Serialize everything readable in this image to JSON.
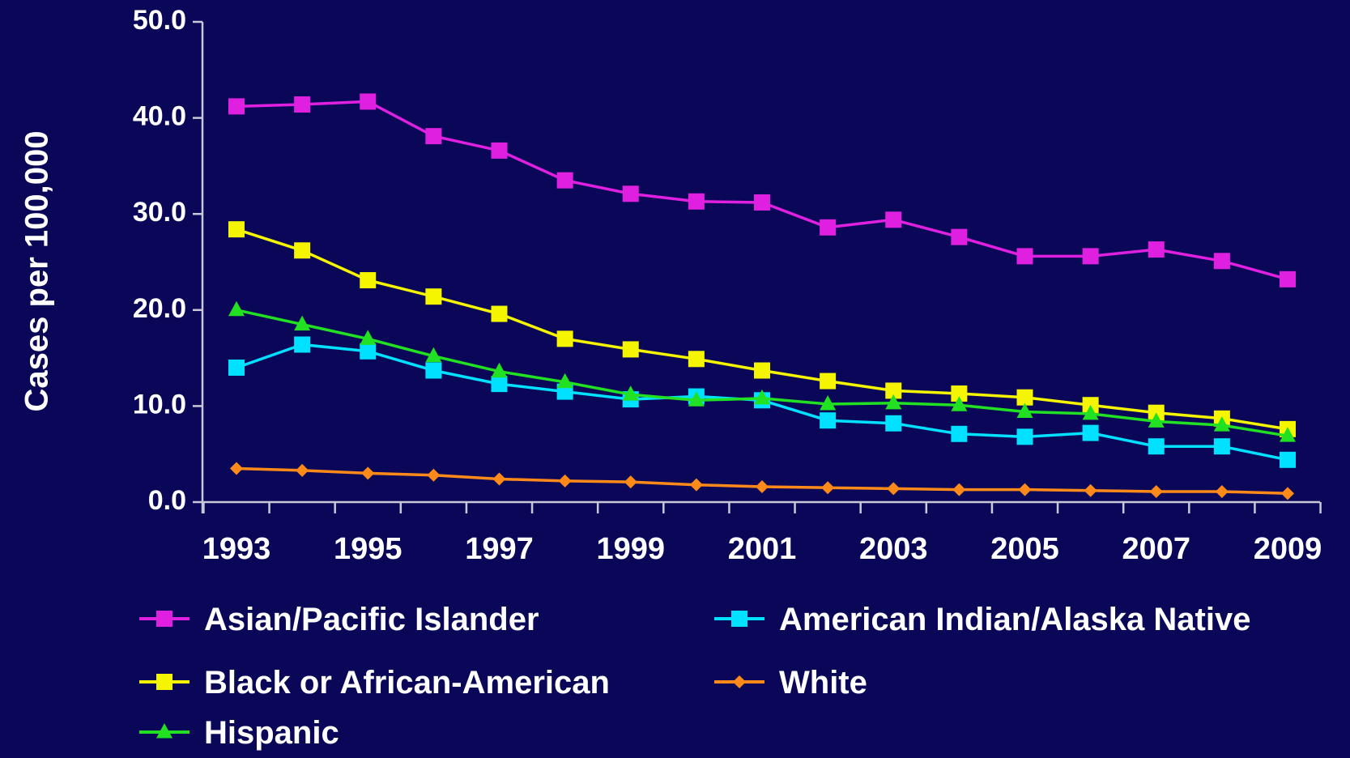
{
  "chart_data": {
    "type": "line",
    "title": "",
    "xlabel": "",
    "ylabel": "Cases per 100,000",
    "x": [
      1993,
      1994,
      1995,
      1996,
      1997,
      1998,
      1999,
      2000,
      2001,
      2002,
      2003,
      2004,
      2005,
      2006,
      2007,
      2008,
      2009
    ],
    "x_tick_labels": [
      "1993",
      "1995",
      "1997",
      "1999",
      "2001",
      "2003",
      "2005",
      "2007",
      "2009"
    ],
    "y_tick_labels": [
      "0.0",
      "10.0",
      "20.0",
      "30.0",
      "40.0",
      "50.0"
    ],
    "ylim": [
      0,
      50
    ],
    "grid": false,
    "legend_position": "bottom",
    "series": [
      {
        "name": "Asian/Pacific Islander",
        "color": "#e020e0",
        "marker": "square",
        "values": [
          41.2,
          41.4,
          41.7,
          38.1,
          36.6,
          33.5,
          32.1,
          31.3,
          31.2,
          28.6,
          29.4,
          27.6,
          25.6,
          25.6,
          26.3,
          25.1,
          23.2
        ]
      },
      {
        "name": "American Indian/Alaska Native",
        "color": "#00e0ff",
        "marker": "square",
        "values": [
          14.0,
          16.4,
          15.7,
          13.7,
          12.3,
          11.5,
          10.7,
          11.0,
          10.6,
          8.5,
          8.2,
          7.1,
          6.8,
          7.2,
          5.8,
          5.8,
          4.4
        ]
      },
      {
        "name": "Black or African-American",
        "color": "#f5f500",
        "marker": "square",
        "values": [
          28.4,
          26.2,
          23.1,
          21.4,
          19.6,
          17.0,
          15.9,
          14.9,
          13.7,
          12.6,
          11.6,
          11.3,
          10.9,
          10.1,
          9.3,
          8.7,
          7.6
        ]
      },
      {
        "name": "White",
        "color": "#ff8a1a",
        "marker": "diamond",
        "values": [
          3.5,
          3.3,
          3.0,
          2.8,
          2.4,
          2.2,
          2.1,
          1.8,
          1.6,
          1.5,
          1.4,
          1.3,
          1.3,
          1.2,
          1.1,
          1.1,
          0.9
        ]
      },
      {
        "name": "Hispanic",
        "color": "#22e022",
        "marker": "triangle",
        "values": [
          20.0,
          18.5,
          17.0,
          15.2,
          13.6,
          12.5,
          11.2,
          10.6,
          10.8,
          10.2,
          10.3,
          10.1,
          9.4,
          9.2,
          8.4,
          8.0,
          6.9
        ]
      }
    ]
  }
}
